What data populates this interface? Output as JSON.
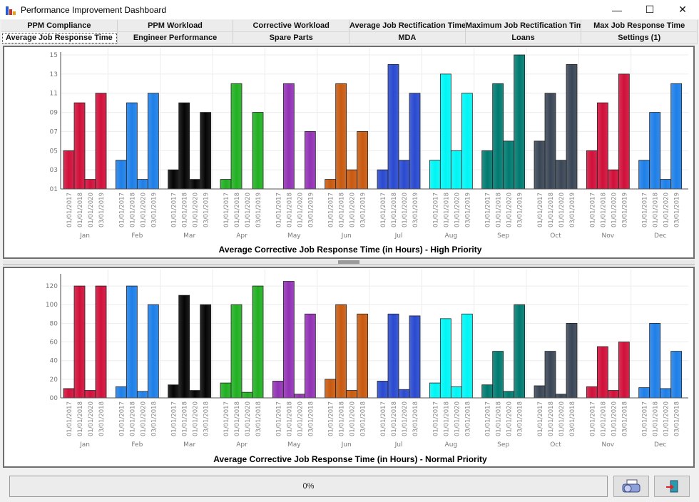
{
  "window": {
    "title": "Performance Improvement Dashboard",
    "minimize_icon": "minimize-icon",
    "maximize_icon": "maximize-icon",
    "close_icon": "close-icon"
  },
  "tabs": {
    "row1": [
      "PPM Compliance",
      "PPM Workload",
      "Corrective Workload",
      "Average Job Rectification Time",
      "Maximum Job Rectification Time",
      "Max Job Response Time"
    ],
    "row2": [
      "Average Job Response Time",
      "Engineer Performance",
      "Spare Parts",
      "MDA",
      "Loans",
      "Settings (1)"
    ],
    "active": "Average Job Response Time"
  },
  "month_colors": [
    "#d0103a",
    "#1e7fe8",
    "#050505",
    "#22b022",
    "#9232b4",
    "#c85a10",
    "#2a4ad0",
    "#00f5f5",
    "#007a70",
    "#3a4656",
    "#d0103a",
    "#1e7fe8"
  ],
  "chart_data": [
    {
      "type": "bar",
      "title": "Average Corrective Job Response Time (in Hours) - High Priority",
      "xlabel": "",
      "ylabel": "",
      "categories": [
        "Jan",
        "Feb",
        "Mar",
        "Apr",
        "May",
        "Jun",
        "Jul",
        "Aug",
        "Sep",
        "Oct",
        "Nov",
        "Dec"
      ],
      "subcategories": [
        "01/01/2017",
        "01/01/2018",
        "01/01/2020",
        "03/01/2019"
      ],
      "ylim": [
        1,
        15
      ],
      "yticks": [
        "01",
        "03",
        "05",
        "07",
        "09",
        "11",
        "13",
        "15"
      ],
      "grid": true,
      "legend": "none",
      "values": [
        [
          5,
          10,
          2,
          11
        ],
        [
          4,
          10,
          2,
          11
        ],
        [
          3,
          10,
          2,
          9
        ],
        [
          2,
          12,
          null,
          9
        ],
        [
          null,
          12,
          null,
          7
        ],
        [
          2,
          12,
          3,
          7
        ],
        [
          3,
          14,
          4,
          11
        ],
        [
          4,
          13,
          5,
          11
        ],
        [
          5,
          12,
          6,
          15
        ],
        [
          6,
          11,
          4,
          14
        ],
        [
          5,
          10,
          3,
          13
        ],
        [
          4,
          9,
          2,
          12
        ]
      ]
    },
    {
      "type": "bar",
      "title": "Average Corrective Job Response Time (in Hours) - Normal Priority",
      "xlabel": "",
      "ylabel": "",
      "categories": [
        "Jan",
        "Feb",
        "Mar",
        "Apr",
        "May",
        "Jun",
        "Jul",
        "Aug",
        "Sep",
        "Oct",
        "Nov",
        "Dec"
      ],
      "subcategories": [
        "01/01/2017",
        "01/01/2018",
        "01/01/2020",
        "03/01/2018"
      ],
      "ylim": [
        0,
        130
      ],
      "yticks": [
        "00",
        "20",
        "40",
        "60",
        "80",
        "100",
        "120"
      ],
      "grid": true,
      "legend": "none",
      "values": [
        [
          10,
          120,
          8,
          120
        ],
        [
          12,
          120,
          7,
          100
        ],
        [
          14,
          110,
          8,
          100
        ],
        [
          16,
          100,
          6,
          120
        ],
        [
          18,
          125,
          4,
          90
        ],
        [
          20,
          100,
          8,
          90
        ],
        [
          18,
          90,
          9,
          88
        ],
        [
          16,
          85,
          12,
          90
        ],
        [
          14,
          50,
          7,
          100
        ],
        [
          13,
          50,
          4,
          80
        ],
        [
          12,
          55,
          8,
          60
        ],
        [
          11,
          80,
          10,
          50
        ]
      ]
    }
  ],
  "status": {
    "progress_text": "0%",
    "progress": 0
  },
  "buttons": {
    "print_icon": "printer-icon",
    "exit_icon": "exit-door-icon"
  }
}
